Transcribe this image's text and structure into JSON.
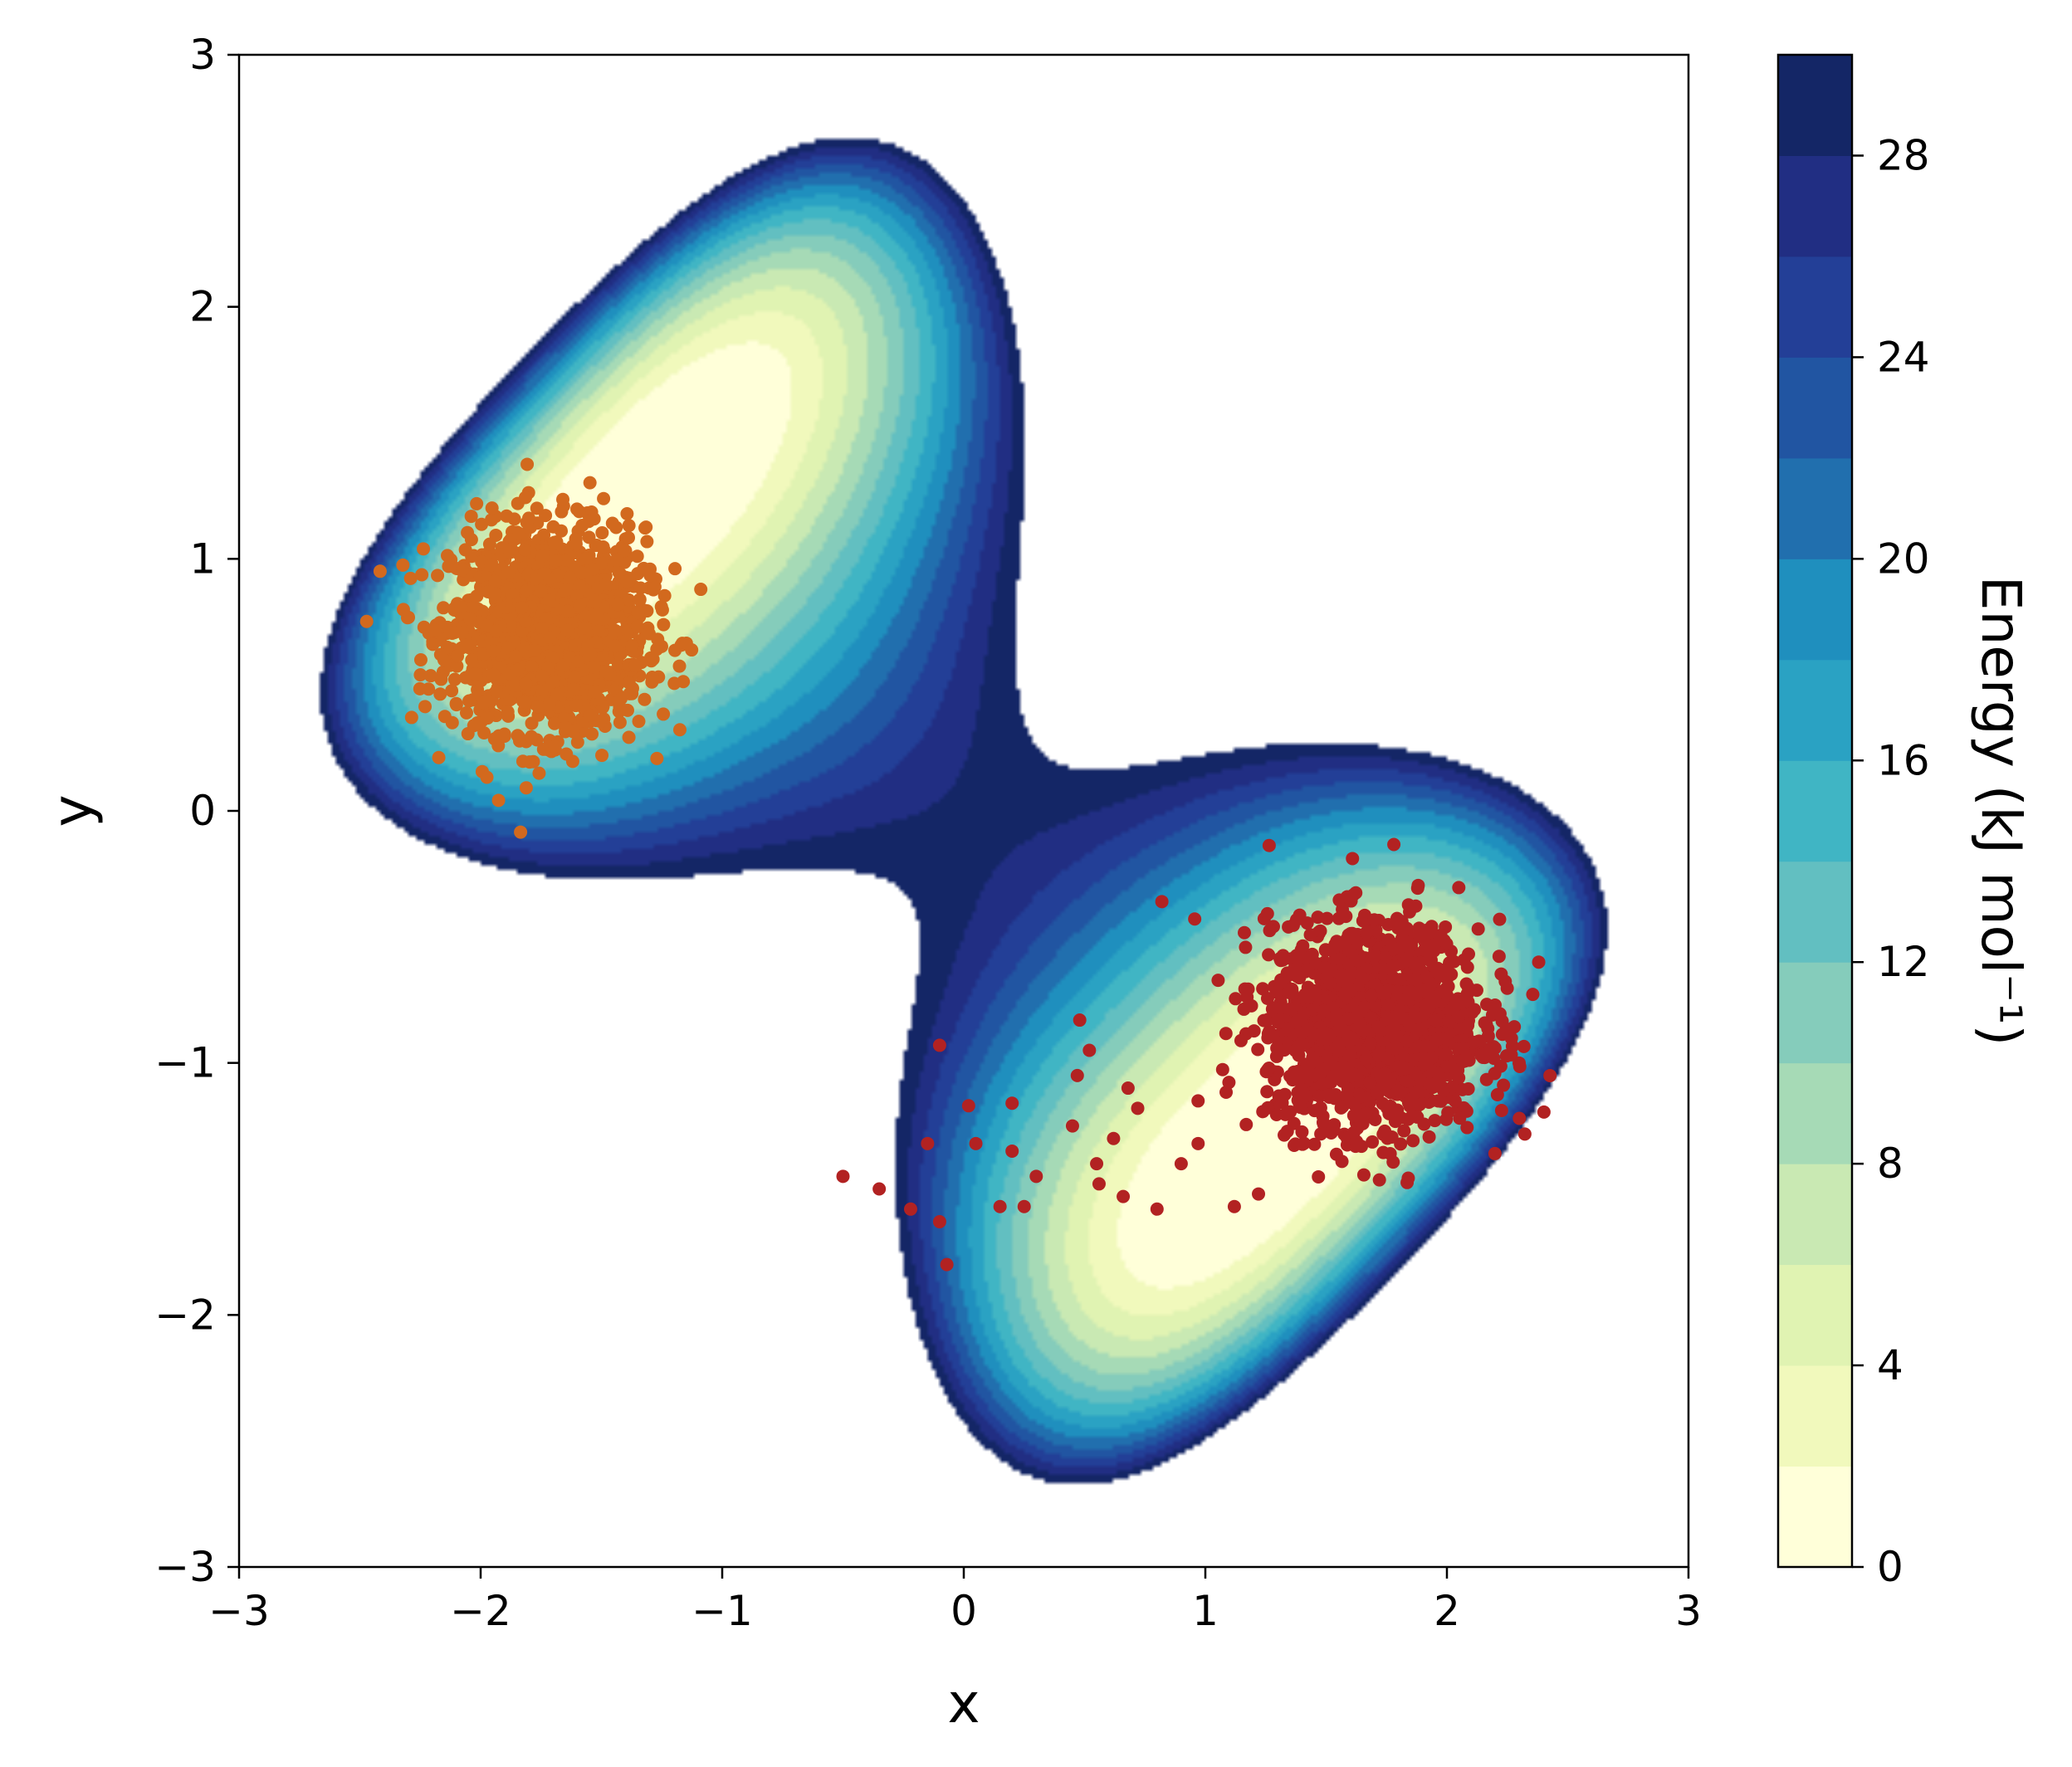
{
  "chart_data": {
    "type": "contour",
    "xlabel": "x",
    "ylabel": "y",
    "xlim": [
      -3,
      3
    ],
    "ylim": [
      -3,
      3
    ],
    "x_ticks": [
      -3,
      -2,
      -1,
      0,
      1,
      2,
      3
    ],
    "y_ticks": [
      -3,
      -2,
      -1,
      0,
      1,
      2,
      3
    ],
    "x_tick_labels": [
      "−3",
      "−2",
      "−1",
      "0",
      "1",
      "2",
      "3"
    ],
    "y_tick_labels": [
      "−3",
      "−2",
      "−1",
      "0",
      "1",
      "2",
      "3"
    ],
    "grid": false,
    "colorbar": {
      "label": "Energy (kJ mol⁻¹)",
      "levels": [
        0,
        2,
        4,
        6,
        8,
        10,
        12,
        14,
        16,
        18,
        20,
        22,
        24,
        26,
        28,
        30
      ],
      "ticks": [
        0,
        4,
        8,
        12,
        16,
        20,
        24,
        28
      ],
      "tick_labels": [
        "0",
        "4",
        "8",
        "12",
        "16",
        "20",
        "24",
        "28"
      ],
      "colors": [
        "#ffffd9",
        "#f1f9bc",
        "#e0f3b2",
        "#c9e9b3",
        "#a6dab6",
        "#85ccbb",
        "#62bfc1",
        "#40b5c4",
        "#2aa2c3",
        "#1f8fbe",
        "#216fae",
        "#2155a2",
        "#233f97",
        "#212e83",
        "#142666"
      ]
    },
    "energy_surface": {
      "description_of_minima": [
        {
          "x": -1.75,
          "y": 0.75
        },
        {
          "x": 1.7,
          "y": -0.85
        }
      ],
      "cutoff_energy": 30
    },
    "scatter_series": [
      {
        "color": "#d2691e",
        "center": [
          -1.72,
          0.72
        ],
        "spread": [
          0.2,
          0.2
        ]
      },
      {
        "color": "#b22222",
        "center": [
          1.7,
          -0.85
        ],
        "spread": [
          0.22,
          0.2
        ],
        "outliers": [
          [
            -0.5,
            -1.45
          ],
          [
            -0.35,
            -1.5
          ],
          [
            -0.22,
            -1.58
          ],
          [
            -0.1,
            -1.63
          ],
          [
            -0.07,
            -1.8
          ],
          [
            -0.15,
            -1.32
          ],
          [
            0.02,
            -1.17
          ],
          [
            0.05,
            -1.32
          ],
          [
            0.15,
            -1.57
          ],
          [
            0.2,
            -1.35
          ],
          [
            0.2,
            -1.16
          ],
          [
            0.25,
            -1.57
          ],
          [
            0.3,
            -1.45
          ],
          [
            0.45,
            -1.25
          ],
          [
            0.47,
            -1.05
          ],
          [
            0.48,
            -0.83
          ],
          [
            0.55,
            -1.4
          ],
          [
            0.56,
            -1.48
          ],
          [
            0.62,
            -1.3
          ],
          [
            0.66,
            -1.53
          ],
          [
            0.68,
            -1.1
          ],
          [
            0.72,
            -1.18
          ],
          [
            0.8,
            -1.58
          ],
          [
            0.82,
            -0.36
          ],
          [
            0.9,
            -1.4
          ],
          [
            0.97,
            -1.32
          ],
          [
            1.12,
            -1.57
          ],
          [
            1.22,
            -1.52
          ],
          [
            2.3,
            -1.22
          ],
          [
            2.38,
            -0.6
          ],
          [
            -0.1,
            -0.93
          ],
          [
            0.52,
            -0.95
          ]
        ]
      }
    ]
  }
}
